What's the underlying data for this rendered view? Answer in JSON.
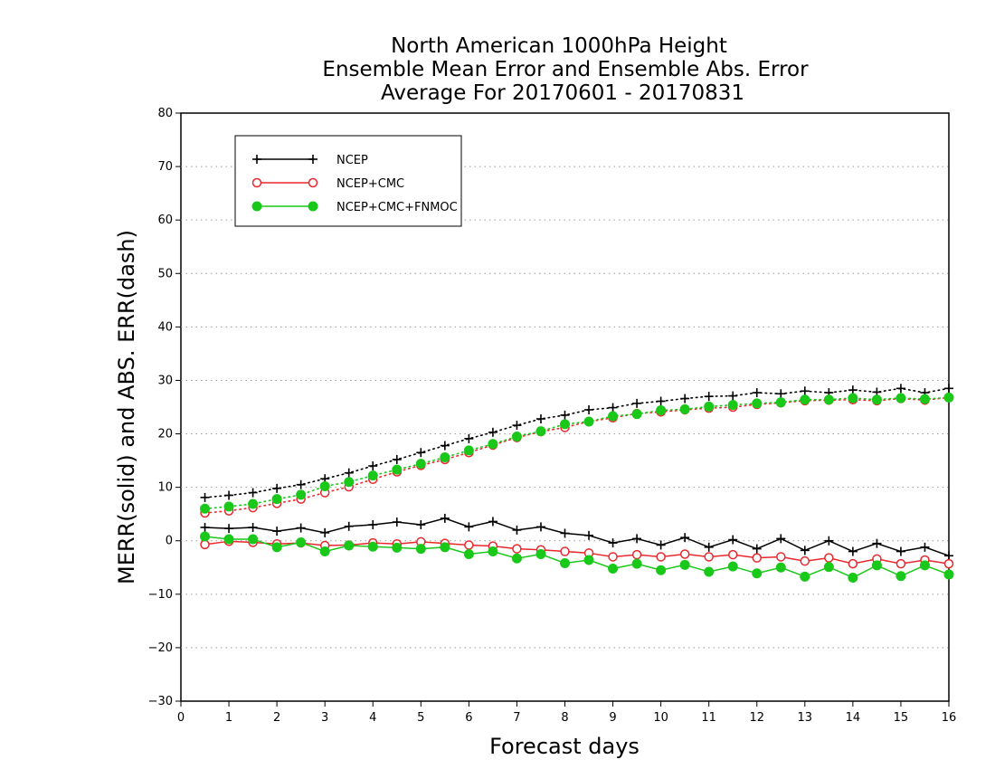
{
  "chart_data": {
    "type": "line",
    "title_lines": [
      "North American 1000hPa Height",
      "Ensemble Mean Error and Ensemble Abs. Error",
      "Average For 20170601 - 20170831"
    ],
    "xlabel": "Forecast days",
    "ylabel": "MERR(solid) and ABS. ERR(dash)",
    "xlim": [
      0,
      16
    ],
    "ylim": [
      -30,
      80
    ],
    "xticks": [
      0,
      1,
      2,
      3,
      4,
      5,
      6,
      7,
      8,
      9,
      10,
      11,
      12,
      13,
      14,
      15,
      16
    ],
    "yticks": [
      -30,
      -20,
      -10,
      0,
      10,
      20,
      30,
      40,
      50,
      60,
      70,
      80
    ],
    "x_tick_labels": [
      "0",
      "1",
      "2",
      "3",
      "4",
      "5",
      "6",
      "7",
      "8",
      "9",
      "10",
      "11",
      "12",
      "13",
      "14",
      "15",
      "16"
    ],
    "y_tick_labels": [
      "−30",
      "−20",
      "−10",
      "0",
      "10",
      "20",
      "30",
      "40",
      "50",
      "60",
      "70",
      "80"
    ],
    "grid": "horizontal dotted",
    "legend_position": "top-left",
    "x": [
      0.5,
      1,
      1.5,
      2,
      2.5,
      3,
      3.5,
      4,
      4.5,
      5,
      5.5,
      6,
      6.5,
      7,
      7.5,
      8,
      8.5,
      9,
      9.5,
      10,
      10.5,
      11,
      11.5,
      12,
      12.5,
      13,
      13.5,
      14,
      14.5,
      15,
      15.5,
      16
    ],
    "series": [
      {
        "name": "NCEP",
        "color": "#000000",
        "marker": "plus",
        "merr": [
          2.5,
          2.3,
          2.5,
          1.8,
          2.4,
          1.5,
          2.7,
          3.0,
          3.5,
          3.0,
          4.2,
          2.6,
          3.6,
          2.0,
          2.6,
          1.4,
          1.0,
          -0.4,
          0.4,
          -0.8,
          0.6,
          -1.2,
          0.2,
          -1.5,
          0.4,
          -1.8,
          0.0,
          -2.0,
          -0.5,
          -2.0,
          -1.2,
          -2.8
        ],
        "abs_err": [
          8.1,
          8.5,
          9.0,
          9.8,
          10.5,
          11.6,
          12.7,
          14.0,
          15.2,
          16.5,
          17.8,
          19.1,
          20.3,
          21.6,
          22.8,
          23.5,
          24.5,
          24.9,
          25.7,
          26.1,
          26.6,
          27.0,
          27.1,
          27.7,
          27.5,
          28.0,
          27.7,
          28.2,
          27.8,
          28.5,
          27.7,
          28.5
        ]
      },
      {
        "name": "NCEP+CMC",
        "color": "#e8282d",
        "marker": "open-circle",
        "merr": [
          -0.7,
          -0.1,
          -0.3,
          -0.6,
          -0.4,
          -0.9,
          -0.8,
          -0.4,
          -0.6,
          -0.2,
          -0.5,
          -0.8,
          -1.0,
          -1.5,
          -1.7,
          -2.0,
          -2.3,
          -3.0,
          -2.6,
          -3.0,
          -2.5,
          -3.0,
          -2.6,
          -3.2,
          -3.0,
          -3.8,
          -3.2,
          -4.3,
          -3.4,
          -4.3,
          -3.6,
          -4.3
        ],
        "abs_err": [
          5.2,
          5.6,
          6.2,
          7.0,
          7.8,
          9.0,
          10.1,
          11.5,
          12.9,
          14.1,
          15.2,
          16.5,
          17.9,
          19.3,
          20.4,
          21.2,
          22.3,
          23.0,
          23.8,
          24.1,
          24.5,
          24.8,
          25.0,
          25.5,
          25.8,
          26.2,
          26.3,
          26.4,
          26.2,
          26.6,
          26.3,
          26.8
        ]
      },
      {
        "name": "NCEP+CMC+FNMOC",
        "color": "#19c819",
        "marker": "filled-circle",
        "merr": [
          0.8,
          0.3,
          0.3,
          -1.2,
          -0.3,
          -2.0,
          -0.9,
          -1.1,
          -1.3,
          -1.5,
          -1.2,
          -2.5,
          -2.0,
          -3.3,
          -2.5,
          -4.2,
          -3.6,
          -5.2,
          -4.3,
          -5.5,
          -4.5,
          -5.8,
          -4.8,
          -6.1,
          -5.0,
          -6.7,
          -4.9,
          -6.9,
          -4.6,
          -6.6,
          -4.6,
          -6.3
        ],
        "abs_err": [
          6.0,
          6.4,
          6.9,
          7.8,
          8.6,
          10.2,
          11.0,
          12.2,
          13.3,
          14.4,
          15.6,
          16.9,
          18.1,
          19.5,
          20.5,
          21.8,
          22.3,
          23.3,
          23.7,
          24.4,
          24.6,
          25.1,
          25.4,
          25.7,
          25.9,
          26.4,
          26.4,
          26.7,
          26.4,
          26.7,
          26.5,
          26.8
        ]
      }
    ]
  }
}
